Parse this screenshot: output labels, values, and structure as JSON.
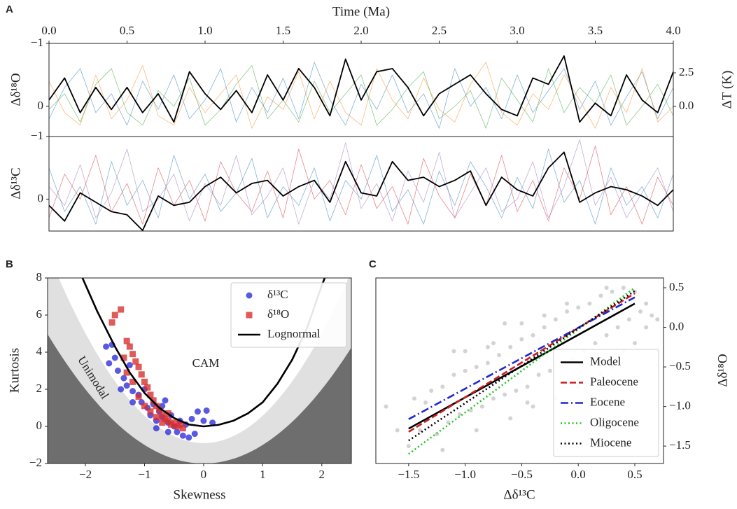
{
  "chart_data": [
    {
      "type": "line",
      "panel_label": "A",
      "x_label": "Time (Ma)",
      "y_label": "Δδ¹⁸O",
      "y2_label": "ΔT (K)",
      "x_axis_side": "top",
      "y_inverted": true,
      "xlim": [
        0,
        4
      ],
      "xticks": [
        {
          "value": 0,
          "label": "0.0"
        },
        {
          "value": 0.5,
          "label": "0.5"
        },
        {
          "value": 1,
          "label": "1.0"
        },
        {
          "value": 1.5,
          "label": "1.5"
        },
        {
          "value": 2,
          "label": "2.0"
        },
        {
          "value": 2.5,
          "label": "2.5"
        },
        {
          "value": 3,
          "label": "3.0"
        },
        {
          "value": 3.5,
          "label": "3.5"
        },
        {
          "value": 4,
          "label": "4.0"
        }
      ],
      "ylim": [
        -1,
        0.48
      ],
      "yticks": [
        {
          "value": -1,
          "label": "−1"
        },
        0
      ],
      "y2lim": [
        -2.24,
        4.69
      ],
      "y2ticks": [
        {
          "value": 0,
          "label": "0.0"
        },
        {
          "value": 2.5,
          "label": "2.5"
        }
      ],
      "x": [
        0,
        0.1,
        0.2,
        0.3,
        0.4,
        0.5,
        0.6,
        0.7,
        0.8,
        0.9,
        1,
        1.1,
        1.2,
        1.3,
        1.4,
        1.5,
        1.6,
        1.7,
        1.8,
        1.9,
        2,
        2.1,
        2.2,
        2.3,
        2.4,
        2.5,
        2.6,
        2.7,
        2.8,
        2.9,
        3,
        3.1,
        3.2,
        3.3,
        3.4,
        3.5,
        3.6,
        3.7,
        3.8,
        3.9,
        4
      ],
      "series": [
        {
          "color": "#1f77b4",
          "width": "thin",
          "values": [
            0.2,
            -0.3,
            -0.6,
            0.1,
            -0.2,
            0.3,
            -0.4,
            0.05,
            -0.5,
            0.2,
            -0.1,
            -0.6,
            0.25,
            -0.3,
            0.1,
            -0.45,
            0.2,
            -0.7,
            -0.1,
            0.3,
            -0.35,
            0.05,
            -0.5,
            0.1,
            -0.2,
            0.35,
            -0.6,
            0.0,
            -0.3,
            0.2,
            -0.5,
            0.1,
            -0.25,
            -0.6,
            0.05,
            -0.4,
            0.3,
            -0.15,
            -0.55,
            0.2,
            -0.3
          ]
        },
        {
          "color": "#ff7f0e",
          "width": "thin",
          "values": [
            -0.4,
            0.1,
            0.3,
            -0.5,
            0.2,
            -0.1,
            -0.65,
            0.15,
            0.3,
            -0.3,
            0.1,
            -0.2,
            -0.5,
            0.35,
            -0.15,
            0.05,
            -0.55,
            0.2,
            -0.4,
            0.1,
            0.3,
            -0.6,
            -0.1,
            0.2,
            -0.45,
            0.05,
            0.25,
            -0.35,
            -0.7,
            0.1,
            0.3,
            -0.2,
            0.05,
            -0.5,
            -0.1,
            0.35,
            -0.3,
            0.1,
            -0.6,
            0.25,
            0.0
          ]
        },
        {
          "color": "#2ca02c",
          "width": "thin",
          "values": [
            0.05,
            -0.2,
            0.25,
            -0.35,
            -0.6,
            0.1,
            0.3,
            -0.25,
            0.0,
            -0.45,
            0.3,
            0.05,
            -0.35,
            -0.65,
            0.2,
            -0.1,
            0.25,
            -0.4,
            0.1,
            -0.2,
            -0.5,
            0.3,
            0.05,
            -0.3,
            -0.55,
            0.2,
            0.0,
            -0.25,
            0.35,
            -0.45,
            -0.1,
            0.25,
            -0.6,
            0.1,
            -0.3,
            -0.05,
            -0.5,
            0.3,
            0.0,
            -0.35,
            0.15
          ]
        },
        {
          "color": "#000000",
          "width": "thick",
          "values": [
            -0.1,
            -0.45,
            0.1,
            -0.3,
            0.05,
            -0.3,
            0.1,
            -0.2,
            0.25,
            -0.55,
            -0.2,
            0.05,
            -0.25,
            0.1,
            -0.5,
            -0.1,
            -0.6,
            -0.3,
            0.15,
            -0.75,
            -0.1,
            -0.55,
            -0.6,
            -0.3,
            0.15,
            -0.2,
            -0.35,
            -0.5,
            -0.2,
            0.05,
            0.15,
            -0.45,
            -0.35,
            -0.8,
            0.25,
            -0.05,
            0.15,
            -0.5,
            -0.1,
            0.1,
            -0.55
          ]
        }
      ]
    },
    {
      "type": "line",
      "y_label": "Δδ¹³C",
      "y_inverted": true,
      "xlim": [
        0,
        4
      ],
      "ylim": [
        -1,
        0.51
      ],
      "yticks": [
        {
          "value": -1,
          "label": "−1"
        },
        0
      ],
      "x": [
        0,
        0.1,
        0.2,
        0.3,
        0.4,
        0.5,
        0.6,
        0.7,
        0.8,
        0.9,
        1,
        1.1,
        1.2,
        1.3,
        1.4,
        1.5,
        1.6,
        1.7,
        1.8,
        1.9,
        2,
        2.1,
        2.2,
        2.3,
        2.4,
        2.5,
        2.6,
        2.7,
        2.8,
        2.9,
        3,
        3.1,
        3.2,
        3.3,
        3.4,
        3.5,
        3.6,
        3.7,
        3.8,
        3.9,
        4
      ],
      "series": [
        {
          "color": "#1f77b4",
          "width": "thin",
          "values": [
            -0.5,
            0.2,
            -0.2,
            0.4,
            -0.6,
            0.1,
            -0.3,
            0.3,
            -0.7,
            0.0,
            -0.4,
            0.2,
            -0.1,
            -0.65,
            0.3,
            -0.2,
            0.1,
            -0.5,
            0.35,
            -0.3,
            0.0,
            -0.7,
            0.2,
            -0.15,
            0.4,
            -0.45,
            0.1,
            -0.6,
            -0.2,
            0.3,
            -0.35,
            0.15,
            -0.8,
            0.05,
            -0.3,
            0.4,
            -0.5,
            0.1,
            -0.2,
            0.3,
            -0.4
          ]
        },
        {
          "color": "#d62728",
          "width": "thin",
          "values": [
            0.3,
            -0.4,
            0.0,
            -0.7,
            0.2,
            -0.25,
            0.4,
            -0.5,
            0.1,
            -0.3,
            0.35,
            -0.6,
            -0.1,
            0.2,
            -0.45,
            0.3,
            -0.8,
            0.0,
            -0.3,
            0.25,
            -0.55,
            0.15,
            -0.2,
            0.4,
            -0.65,
            -0.05,
            0.3,
            -0.4,
            0.1,
            -0.7,
            0.2,
            -0.3,
            0.35,
            -0.5,
            0.0,
            -0.85,
            0.25,
            -0.2,
            0.4,
            -0.35,
            0.1
          ]
        },
        {
          "color": "#9467bd",
          "width": "thin",
          "values": [
            -0.2,
            0.1,
            -0.55,
            0.3,
            -0.1,
            -0.8,
            0.2,
            0.0,
            -0.4,
            0.35,
            -0.25,
            0.1,
            -0.7,
            0.25,
            -0.05,
            -0.5,
            0.4,
            -0.3,
            0.0,
            -0.9,
            0.15,
            -0.25,
            0.35,
            -0.45,
            0.05,
            -0.75,
            0.3,
            -0.1,
            -0.5,
            0.2,
            0.0,
            -0.6,
            0.3,
            -0.2,
            -0.95,
            0.1,
            -0.35,
            0.3,
            -0.1,
            -0.5,
            0.2
          ]
        },
        {
          "color": "#000000",
          "width": "thick",
          "values": [
            0.1,
            0.35,
            -0.1,
            0.05,
            0.2,
            0.25,
            0.5,
            -0.05,
            0.1,
            0.05,
            -0.2,
            -0.35,
            -0.1,
            -0.25,
            -0.3,
            -0.05,
            -0.2,
            -0.3,
            0.05,
            -0.6,
            -0.1,
            -0.05,
            -0.6,
            -0.3,
            -0.35,
            -0.2,
            -0.3,
            -0.45,
            0.1,
            -0.35,
            -0.15,
            -0.05,
            -0.5,
            -0.75,
            0.05,
            -0.1,
            -0.2,
            -0.15,
            -0.05,
            0.1,
            -0.15
          ]
        }
      ]
    },
    {
      "type": "scatter",
      "panel_label": "B",
      "x_label": "Skewness",
      "y_label": "Kurtosis",
      "annotations": [
        "CAM",
        "Unimodal"
      ],
      "legend": "upper right",
      "moment_regions": true,
      "xlim": [
        -2.64,
        2.5
      ],
      "xticks": [
        {
          "value": -2,
          "label": "−2"
        },
        {
          "value": -1,
          "label": "−1"
        },
        0,
        1,
        2
      ],
      "ylim": [
        -2,
        8
      ],
      "yticks": [
        {
          "value": -2,
          "label": "−2"
        },
        0,
        2,
        4,
        6,
        8
      ],
      "series": [
        {
          "name": "δ¹³C",
          "kind": "points",
          "marker": "circle",
          "color": "#2b2bd9",
          "x": [
            -1.65,
            -1.55,
            -1.5,
            -1.6,
            -1.45,
            -1.35,
            -1.25,
            -1.3,
            -1.2,
            -1.4,
            -1.1,
            -1.0,
            -1.05,
            -0.95,
            -0.9,
            -0.85,
            -0.8,
            -0.75,
            -0.7,
            -0.65,
            -0.6,
            -0.55,
            -0.5,
            -0.45,
            -0.4,
            -0.35,
            -0.3,
            -0.25,
            -0.2,
            -0.15,
            -0.1,
            0.0,
            0.15,
            0.05,
            -0.6,
            -0.8,
            -1.2,
            -0.7
          ],
          "values": [
            4.3,
            4.4,
            3.7,
            3.4,
            3.0,
            2.6,
            3.3,
            2.2,
            1.9,
            2.0,
            1.7,
            2.0,
            1.3,
            1.0,
            0.6,
            1.2,
            0.3,
            0.8,
            0.5,
            1.4,
            0.2,
            0.6,
            0.0,
            -0.3,
            0.3,
            -0.5,
            0.1,
            -0.6,
            0.4,
            -0.4,
            0.8,
            0.3,
            0.2,
            0.85,
            -0.3,
            -0.1,
            1.3,
            1.1
          ]
        },
        {
          "name": "δ¹⁸O",
          "kind": "points",
          "marker": "square",
          "color": "#d92b2b",
          "x": [
            -1.4,
            -1.5,
            -1.55,
            -1.3,
            -1.25,
            -1.2,
            -1.15,
            -1.1,
            -1.05,
            -1.0,
            -0.95,
            -0.9,
            -0.85,
            -0.8,
            -0.75,
            -0.7,
            -0.65,
            -0.6,
            -0.55,
            -0.5,
            -0.45,
            -0.4,
            -0.35,
            -0.8,
            -0.7,
            -0.9,
            -1.0,
            -0.6,
            -1.1,
            -1.2,
            -1.35,
            -1.3
          ],
          "values": [
            6.3,
            6.0,
            5.6,
            4.6,
            4.3,
            3.9,
            3.5,
            3.2,
            2.8,
            2.4,
            2.1,
            1.7,
            1.4,
            1.1,
            0.9,
            0.6,
            0.4,
            0.3,
            0.1,
            0.2,
            0.0,
            0.1,
            -0.1,
            0.5,
            0.2,
            0.8,
            1.1,
            0.7,
            1.6,
            2.4,
            3.7,
            2.9
          ]
        },
        {
          "name": "Lognormal",
          "kind": "line",
          "dash": "solid",
          "color": "#000000",
          "x": [
            -2.05,
            -1.8,
            -1.5,
            -1.25,
            -1.0,
            -0.75,
            -0.5,
            -0.25,
            0,
            0.25,
            0.5,
            0.75,
            1.0,
            1.25,
            1.5,
            1.75,
            2.0,
            2.05
          ],
          "values": [
            8,
            6.2,
            4.3,
            2.9,
            1.8,
            1.0,
            0.45,
            0.1,
            0,
            0.08,
            0.3,
            0.7,
            1.3,
            2.3,
            3.6,
            5.3,
            7.6,
            8
          ]
        }
      ]
    },
    {
      "type": "scatter",
      "panel_label": "C",
      "x_label": "Δδ¹³C",
      "y_label": "Δδ¹⁸O",
      "y_axis_side": "right",
      "legend": "lower right",
      "xlim": [
        -1.79,
        0.754
      ],
      "xticks": [
        {
          "value": -1.5,
          "label": "−1.5"
        },
        {
          "value": -1,
          "label": "−1.0"
        },
        {
          "value": -0.5,
          "label": "−0.5"
        },
        {
          "value": 0,
          "label": "0.0"
        },
        0.5
      ],
      "ylim": [
        -1.72,
        0.624
      ],
      "yticks": [
        {
          "value": -1.5,
          "label": "−1.5"
        },
        {
          "value": -1,
          "label": "−1.0"
        },
        {
          "value": -0.5,
          "label": "−0.5"
        },
        {
          "value": 0,
          "label": "0.0"
        },
        0.5
      ],
      "series": [
        {
          "kind": "points",
          "marker": "circle",
          "color": "#c8c8c8",
          "x": [
            -1.6,
            -1.5,
            -1.45,
            -1.4,
            -1.3,
            -1.25,
            -1.2,
            -1.15,
            -1.1,
            -1.05,
            -1.0,
            -0.95,
            -0.9,
            -0.85,
            -0.8,
            -0.75,
            -0.7,
            -0.65,
            -0.6,
            -0.55,
            -0.5,
            -0.45,
            -0.4,
            -0.35,
            -0.3,
            -0.25,
            -0.2,
            -0.15,
            -0.1,
            -0.05,
            0.0,
            0.05,
            0.1,
            0.15,
            0.2,
            0.25,
            0.3,
            0.35,
            0.4,
            0.45,
            0.5,
            0.55,
            0.6,
            0.65,
            0.7,
            -1.7,
            -1.35,
            -1.2,
            -1.0,
            -0.9,
            -0.75,
            -0.6,
            -0.5,
            -0.4,
            -0.3,
            -0.2,
            -0.1,
            0.0,
            0.1,
            0.2,
            0.3,
            0.4,
            0.5,
            0.6,
            -0.8,
            -1.1,
            -0.45,
            0.25,
            0.05,
            -0.65
          ],
          "values": [
            -1.3,
            -1.5,
            -0.9,
            -1.3,
            -0.8,
            -1.35,
            -0.75,
            -1.2,
            -0.6,
            -1.1,
            -0.55,
            -1.05,
            -0.5,
            -1.0,
            -0.45,
            -0.9,
            -0.35,
            -0.85,
            -0.25,
            -0.8,
            -0.15,
            -0.75,
            -0.1,
            -0.6,
            0.0,
            -0.55,
            0.1,
            -0.5,
            0.2,
            -0.4,
            0.25,
            -0.3,
            0.3,
            -0.2,
            0.4,
            -0.1,
            0.45,
            0.0,
            0.5,
            0.1,
            0.45,
            0.2,
            0.3,
            0.15,
            0.1,
            -1.0,
            -0.95,
            -1.55,
            -0.3,
            -1.3,
            -0.2,
            -1.15,
            0.05,
            -1.0,
            0.15,
            -0.9,
            0.3,
            -0.75,
            -0.85,
            -0.6,
            -0.5,
            -0.3,
            -0.2,
            0.0,
            -0.25,
            -0.3,
            -0.95,
            0.5,
            -0.7,
            0.05
          ]
        },
        {
          "name": "Model",
          "kind": "line",
          "dash": "solid",
          "color": "#000000",
          "x": [
            -1.5,
            0.5
          ],
          "values": [
            -1.28,
            0.3
          ]
        },
        {
          "name": "Paleocene",
          "kind": "line",
          "dash": "dashed",
          "color": "#c81e1e",
          "x": [
            -1.5,
            0.5
          ],
          "values": [
            -1.32,
            0.43
          ]
        },
        {
          "name": "Eocene",
          "kind": "line",
          "dash": "dashdot",
          "color": "#1e28d2",
          "x": [
            -1.5,
            0.5
          ],
          "values": [
            -1.16,
            0.38
          ]
        },
        {
          "name": "Oligocene",
          "kind": "line",
          "dash": "dotted",
          "color": "#1ec81e",
          "x": [
            -1.5,
            0.5
          ],
          "values": [
            -1.6,
            0.5
          ]
        },
        {
          "name": "Miocene",
          "kind": "line",
          "dash": "dotted",
          "color": "#000000",
          "x": [
            -1.5,
            0.5
          ],
          "values": [
            -1.43,
            0.46
          ]
        }
      ]
    }
  ]
}
